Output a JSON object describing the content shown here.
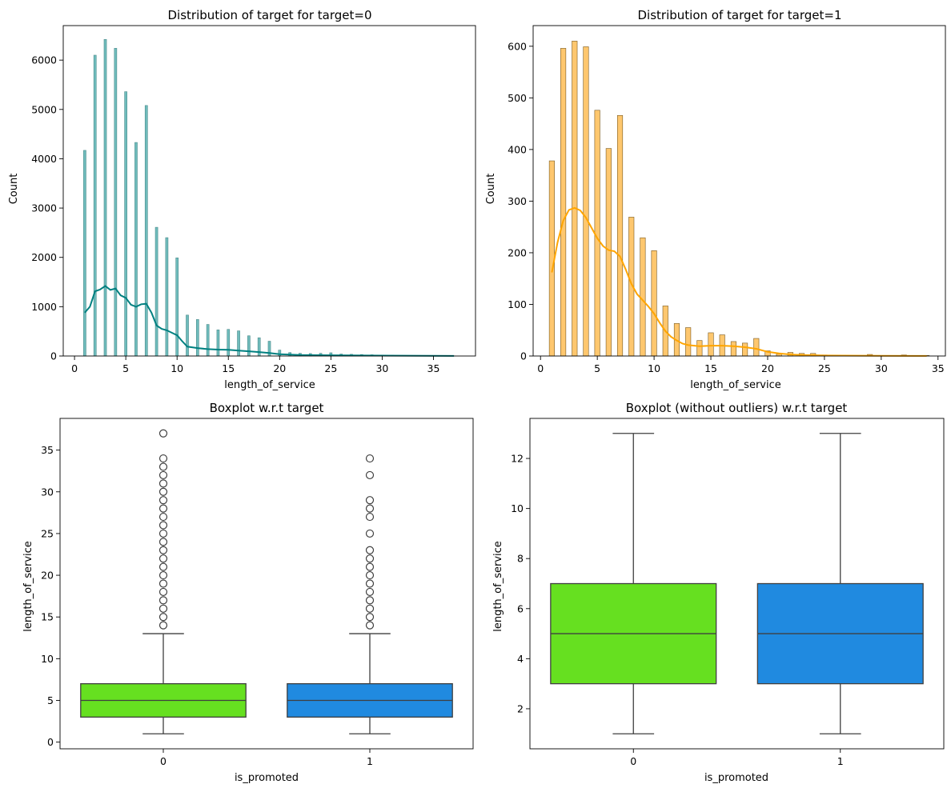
{
  "chart_data": [
    {
      "type": "histogram",
      "title": "Distribution of target for target=0",
      "xlabel": "length_of_service",
      "ylabel": "Count",
      "xlim": [
        -1.1,
        39.1
      ],
      "ylim": [
        0,
        6700
      ],
      "xticks": [
        0,
        5,
        10,
        15,
        20,
        25,
        30,
        35
      ],
      "yticks": [
        0,
        1000,
        2000,
        3000,
        4000,
        5000,
        6000
      ],
      "bar_width": 0.24,
      "bar_color": "#6fbcbc",
      "bar_edge": "#4d8c8c",
      "kde_color": "#008080",
      "bars": [
        {
          "x": 1,
          "count": 4170
        },
        {
          "x": 2,
          "count": 6100
        },
        {
          "x": 3,
          "count": 6420
        },
        {
          "x": 4,
          "count": 6240
        },
        {
          "x": 5,
          "count": 5360
        },
        {
          "x": 6,
          "count": 4330
        },
        {
          "x": 7,
          "count": 5080
        },
        {
          "x": 8,
          "count": 2610
        },
        {
          "x": 9,
          "count": 2400
        },
        {
          "x": 10,
          "count": 1990
        },
        {
          "x": 11,
          "count": 830
        },
        {
          "x": 12,
          "count": 740
        },
        {
          "x": 13,
          "count": 640
        },
        {
          "x": 14,
          "count": 530
        },
        {
          "x": 15,
          "count": 540
        },
        {
          "x": 16,
          "count": 510
        },
        {
          "x": 17,
          "count": 410
        },
        {
          "x": 18,
          "count": 370
        },
        {
          "x": 19,
          "count": 300
        },
        {
          "x": 20,
          "count": 120
        },
        {
          "x": 21,
          "count": 70
        },
        {
          "x": 22,
          "count": 55
        },
        {
          "x": 23,
          "count": 50
        },
        {
          "x": 24,
          "count": 55
        },
        {
          "x": 25,
          "count": 65
        },
        {
          "x": 26,
          "count": 40
        },
        {
          "x": 27,
          "count": 35
        },
        {
          "x": 28,
          "count": 30
        },
        {
          "x": 29,
          "count": 25
        },
        {
          "x": 30,
          "count": 20
        },
        {
          "x": 31,
          "count": 15
        },
        {
          "x": 32,
          "count": 10
        },
        {
          "x": 33,
          "count": 8
        },
        {
          "x": 34,
          "count": 6
        },
        {
          "x": 35,
          "count": 4
        },
        {
          "x": 37,
          "count": 3
        }
      ],
      "kde": [
        [
          1,
          880
        ],
        [
          1.5,
          1000
        ],
        [
          2,
          1310
        ],
        [
          2.5,
          1350
        ],
        [
          3,
          1420
        ],
        [
          3.5,
          1340
        ],
        [
          4,
          1370
        ],
        [
          4.5,
          1230
        ],
        [
          5,
          1180
        ],
        [
          5.5,
          1040
        ],
        [
          6,
          1000
        ],
        [
          6.5,
          1050
        ],
        [
          7,
          1060
        ],
        [
          7.5,
          880
        ],
        [
          8,
          620
        ],
        [
          8.5,
          550
        ],
        [
          9,
          520
        ],
        [
          9.5,
          470
        ],
        [
          10,
          420
        ],
        [
          10.5,
          300
        ],
        [
          11,
          190
        ],
        [
          12,
          160
        ],
        [
          13,
          140
        ],
        [
          14,
          130
        ],
        [
          15,
          125
        ],
        [
          16,
          110
        ],
        [
          17,
          95
        ],
        [
          18,
          80
        ],
        [
          19,
          60
        ],
        [
          20,
          35
        ],
        [
          22,
          20
        ],
        [
          25,
          15
        ],
        [
          30,
          8
        ],
        [
          37,
          2
        ]
      ]
    },
    {
      "type": "histogram",
      "title": "Distribution of target for target=1",
      "xlabel": "length_of_service",
      "ylabel": "Count",
      "xlim": [
        -0.65,
        35.65
      ],
      "ylim": [
        0,
        640
      ],
      "xticks": [
        0,
        5,
        10,
        15,
        20,
        25,
        30,
        35
      ],
      "yticks": [
        0,
        100,
        200,
        300,
        400,
        500,
        600
      ],
      "bar_width": 0.46,
      "bar_color": "#fec76e",
      "bar_edge": "#7a5a20",
      "kde_color": "#ffa500",
      "bars": [
        {
          "x": 1,
          "count": 378
        },
        {
          "x": 2,
          "count": 596
        },
        {
          "x": 3,
          "count": 610
        },
        {
          "x": 4,
          "count": 599
        },
        {
          "x": 5,
          "count": 476
        },
        {
          "x": 6,
          "count": 402
        },
        {
          "x": 7,
          "count": 466
        },
        {
          "x": 8,
          "count": 269
        },
        {
          "x": 9,
          "count": 229
        },
        {
          "x": 10,
          "count": 204
        },
        {
          "x": 11,
          "count": 97
        },
        {
          "x": 12,
          "count": 63
        },
        {
          "x": 13,
          "count": 55
        },
        {
          "x": 14,
          "count": 30
        },
        {
          "x": 15,
          "count": 45
        },
        {
          "x": 16,
          "count": 41
        },
        {
          "x": 17,
          "count": 28
        },
        {
          "x": 18,
          "count": 25
        },
        {
          "x": 19,
          "count": 34
        },
        {
          "x": 20,
          "count": 10
        },
        {
          "x": 21,
          "count": 4
        },
        {
          "x": 22,
          "count": 7
        },
        {
          "x": 23,
          "count": 5
        },
        {
          "x": 24,
          "count": 5
        },
        {
          "x": 25,
          "count": 2
        },
        {
          "x": 27,
          "count": 1
        },
        {
          "x": 28,
          "count": 1
        },
        {
          "x": 29,
          "count": 3
        },
        {
          "x": 32,
          "count": 2
        },
        {
          "x": 34,
          "count": 1
        }
      ],
      "kde": [
        [
          1,
          162
        ],
        [
          1.5,
          220
        ],
        [
          2,
          262
        ],
        [
          2.5,
          283
        ],
        [
          3,
          287
        ],
        [
          3.5,
          282
        ],
        [
          4,
          268
        ],
        [
          4.5,
          248
        ],
        [
          5,
          228
        ],
        [
          5.5,
          213
        ],
        [
          6,
          205
        ],
        [
          6.5,
          203
        ],
        [
          7,
          193
        ],
        [
          7.5,
          168
        ],
        [
          8,
          140
        ],
        [
          8.5,
          120
        ],
        [
          9,
          108
        ],
        [
          9.5,
          96
        ],
        [
          10,
          82
        ],
        [
          10.5,
          64
        ],
        [
          11,
          48
        ],
        [
          11.5,
          37
        ],
        [
          12,
          30
        ],
        [
          12.5,
          24
        ],
        [
          13,
          21
        ],
        [
          14,
          19
        ],
        [
          15,
          20
        ],
        [
          16,
          20
        ],
        [
          17,
          19
        ],
        [
          18,
          17
        ],
        [
          19,
          14
        ],
        [
          20,
          8
        ],
        [
          21,
          5
        ],
        [
          22,
          3
        ],
        [
          23,
          2
        ],
        [
          25,
          1
        ],
        [
          30,
          0.5
        ],
        [
          34,
          0.2
        ]
      ]
    },
    {
      "type": "boxplot",
      "title": "Boxplot w.r.t target",
      "xlabel": "is_promoted",
      "ylabel": "length_of_service",
      "ylim": [
        -0.8,
        38.8
      ],
      "yticks": [
        0,
        5,
        10,
        15,
        20,
        25,
        30,
        35
      ],
      "categories": [
        "0",
        "1"
      ],
      "boxes": [
        {
          "min": 1,
          "q1": 3,
          "median": 5,
          "q3": 7,
          "max": 13,
          "color": "#66e020",
          "outliers": [
            14,
            15,
            16,
            17,
            18,
            19,
            20,
            21,
            22,
            23,
            24,
            25,
            26,
            27,
            28,
            29,
            30,
            31,
            32,
            33,
            34,
            37
          ]
        },
        {
          "min": 1,
          "q1": 3,
          "median": 5,
          "q3": 7,
          "max": 13,
          "color": "#208ae0",
          "outliers": [
            14,
            15,
            16,
            17,
            18,
            19,
            20,
            21,
            22,
            23,
            25,
            27,
            28,
            29,
            32,
            34
          ]
        }
      ]
    },
    {
      "type": "boxplot",
      "title": "Boxplot (without outliers) w.r.t target",
      "xlabel": "is_promoted",
      "ylabel": "length_of_service",
      "ylim": [
        0.4,
        13.6
      ],
      "yticks": [
        2,
        4,
        6,
        8,
        10,
        12
      ],
      "categories": [
        "0",
        "1"
      ],
      "boxes": [
        {
          "min": 1,
          "q1": 3,
          "median": 5,
          "q3": 7,
          "max": 13,
          "color": "#66e020",
          "outliers": []
        },
        {
          "min": 1,
          "q1": 3,
          "median": 5,
          "q3": 7,
          "max": 13,
          "color": "#208ae0",
          "outliers": []
        }
      ]
    }
  ]
}
